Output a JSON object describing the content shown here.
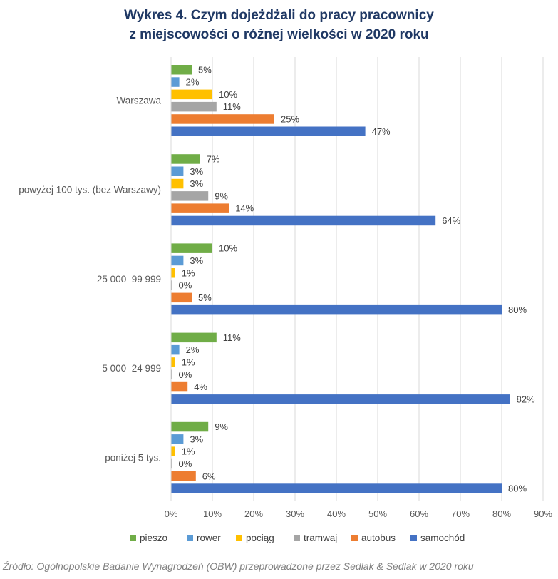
{
  "title_line1": "Wykres 4. Czym dojeżdżali do pracy pracownicy",
  "title_line2": "z miejscowości o różnej wielkości w 2020 roku",
  "source": "Źródło: Ogólnopolskie Badanie Wynagrodzeń (OBW) przeprowadzone przez Sedlak & Sedlak w 2020 roku",
  "chart_data": {
    "type": "bar",
    "orientation": "horizontal",
    "categories": [
      "Warszawa",
      "powyżej 100 tys. (bez Warszawy)",
      "25 000–99 999",
      "5 000–24 999",
      "poniżej 5 tys."
    ],
    "series": [
      {
        "name": "pieszo",
        "color": "#70ad47",
        "values": [
          5,
          7,
          10,
          11,
          9
        ]
      },
      {
        "name": "rower",
        "color": "#5b9bd5",
        "values": [
          2,
          3,
          3,
          2,
          3
        ]
      },
      {
        "name": "pociąg",
        "color": "#ffc000",
        "values": [
          10,
          3,
          1,
          1,
          1
        ]
      },
      {
        "name": "tramwaj",
        "color": "#a5a5a5",
        "values": [
          11,
          9,
          0,
          0,
          0
        ]
      },
      {
        "name": "autobus",
        "color": "#ed7d31",
        "values": [
          25,
          14,
          5,
          4,
          6
        ]
      },
      {
        "name": "samochód",
        "color": "#4472c4",
        "values": [
          47,
          64,
          80,
          82,
          80
        ]
      }
    ],
    "xlim": [
      0,
      90
    ],
    "x_ticks": [
      "0%",
      "10%",
      "20%",
      "30%",
      "40%",
      "50%",
      "60%",
      "70%",
      "80%",
      "90%"
    ],
    "grid": true,
    "legend_position": "bottom",
    "value_format": "percent"
  }
}
